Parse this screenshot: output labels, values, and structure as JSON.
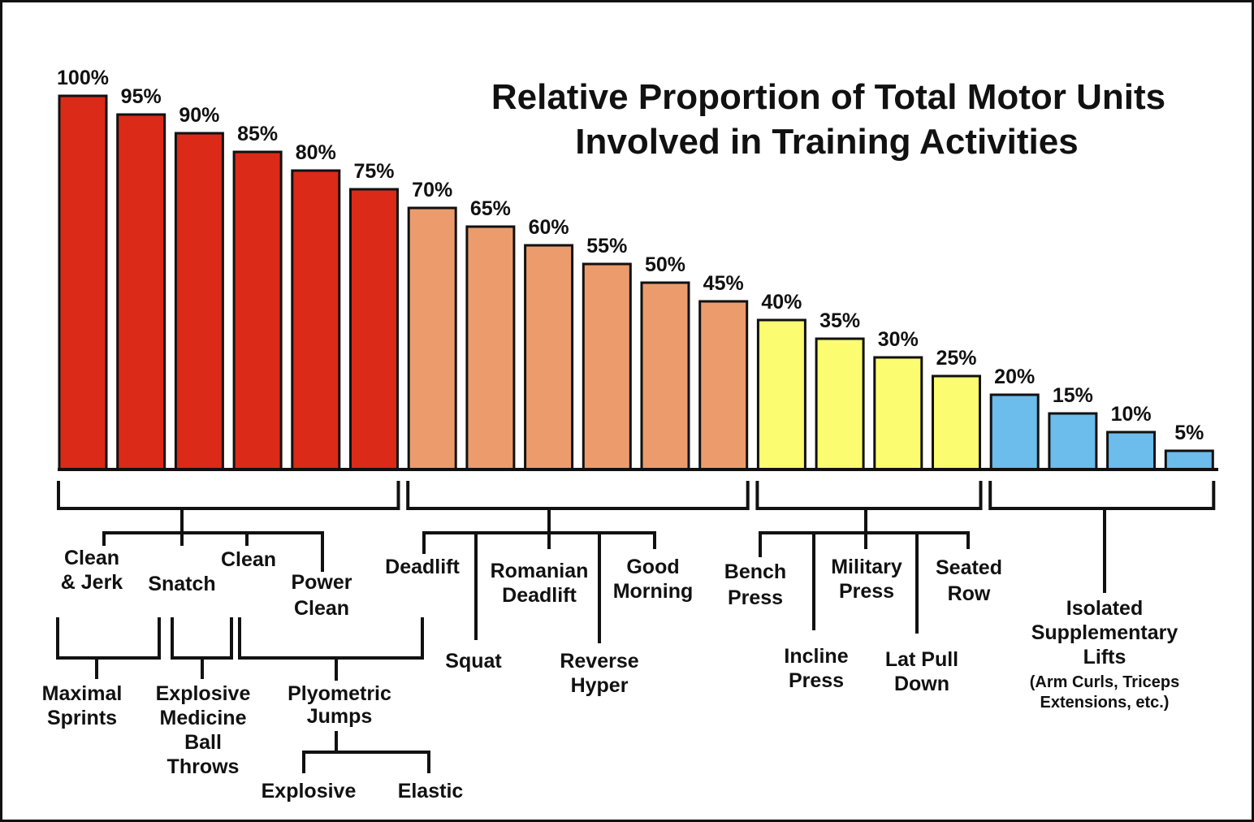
{
  "chart_data": {
    "type": "bar",
    "title": "Relative Proportion of Total Motor Units Involved in Training Activities",
    "title_lines": [
      "Relative Proportion of Total Motor Units",
      "Involved in Training Activities"
    ],
    "ylim": [
      0,
      100
    ],
    "grid": false,
    "value_labels": [
      "100%",
      "95%",
      "90%",
      "85%",
      "80%",
      "75%",
      "70%",
      "65%",
      "60%",
      "55%",
      "50%",
      "45%",
      "40%",
      "35%",
      "30%",
      "25%",
      "20%",
      "15%",
      "10%",
      "5%"
    ],
    "values": [
      100,
      95,
      90,
      85,
      80,
      75,
      70,
      65,
      60,
      55,
      50,
      45,
      40,
      35,
      30,
      25,
      20,
      15,
      10,
      5
    ],
    "bar_colors": [
      "#dc2a18",
      "#dc2a18",
      "#dc2a18",
      "#dc2a18",
      "#dc2a18",
      "#dc2a18",
      "#ec9c6c",
      "#ec9c6c",
      "#ec9c6c",
      "#ec9c6c",
      "#ec9c6c",
      "#ec9c6c",
      "#fcfc70",
      "#fcfc70",
      "#fcfc70",
      "#fcfc70",
      "#6cbcec",
      "#6cbcec",
      "#6cbcec",
      "#6cbcec"
    ],
    "groups": [
      {
        "color": "#dc2a18",
        "bars": [
          0,
          5
        ]
      },
      {
        "color": "#ec9c6c",
        "bars": [
          6,
          11
        ]
      },
      {
        "color": "#fcfc70",
        "bars": [
          12,
          15
        ]
      },
      {
        "color": "#6cbcec",
        "bars": [
          16,
          19
        ]
      }
    ],
    "annotations": {
      "clean_jerk": [
        "Clean",
        "& Jerk"
      ],
      "snatch": [
        "Snatch"
      ],
      "clean": [
        "Clean"
      ],
      "power_clean": [
        "Power",
        "Clean"
      ],
      "maximal_sprints": [
        "Maximal",
        "Sprints"
      ],
      "explosive_mb_throws": [
        "Explosive",
        "Medicine",
        "Ball",
        "Throws"
      ],
      "plyometric_jumps": [
        "Plyometric",
        "Jumps"
      ],
      "explosive": [
        "Explosive"
      ],
      "elastic": [
        "Elastic"
      ],
      "deadlift": [
        "Deadlift"
      ],
      "squat": [
        "Squat"
      ],
      "romanian_deadlift": [
        "Romanian",
        "Deadlift"
      ],
      "reverse_hyper": [
        "Reverse",
        "Hyper"
      ],
      "good_morning": [
        "Good",
        "Morning"
      ],
      "bench_press": [
        "Bench",
        "Press"
      ],
      "incline_press": [
        "Incline",
        "Press"
      ],
      "military_press": [
        "Military",
        "Press"
      ],
      "lat_pull_down": [
        "Lat Pull",
        "Down"
      ],
      "seated_row": [
        "Seated",
        "Row"
      ],
      "isolated_lifts": [
        "Isolated",
        "Supplementary",
        "Lifts"
      ],
      "isolated_note": [
        "(Arm Curls, Triceps",
        "Extensions, etc.)"
      ]
    }
  }
}
